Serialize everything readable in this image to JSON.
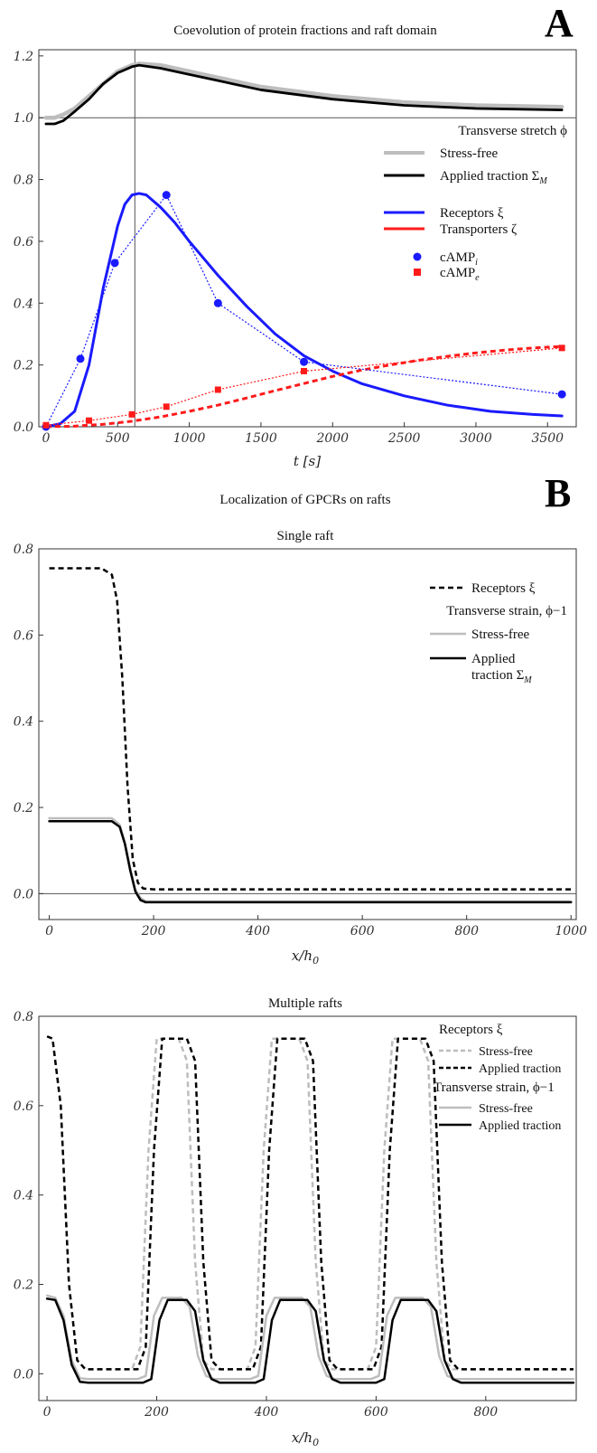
{
  "panelA": {
    "letter": "A",
    "title": "Coevolution of protein fractions and raft domain",
    "xlabel": "t [s]",
    "legend": {
      "header": "Transverse stretch ϕ",
      "stress_free": "Stress-free",
      "applied": "Applied traction Σ",
      "applied_sub": "M",
      "receptors": "Receptors ξ",
      "transporters": "Transporters ζ",
      "camp_i": "cAMP",
      "camp_i_sub": "i",
      "camp_e": "cAMP",
      "camp_e_sub": "e"
    }
  },
  "panelB": {
    "letter": "B",
    "title": "Localization of GPCRs on rafts",
    "single": {
      "title": "Single raft",
      "xlabel": "x/h",
      "xlabel_sub": "0",
      "legend": {
        "receptors": "Receptors ξ",
        "header": "Transverse strain, ϕ−1",
        "stress_free": "Stress-free",
        "applied_l1": "Applied",
        "applied_l2": "traction Σ",
        "applied_sub": "M"
      }
    },
    "multiple": {
      "title": "Multiple rafts",
      "xlabel": "x/h",
      "xlabel_sub": "0",
      "legend": {
        "receptors_header": "Receptors ξ",
        "r_stress_free": "Stress-free",
        "r_applied": "Applied traction",
        "strain_header": "Transverse strain, ϕ−1",
        "s_stress_free": "Stress-free",
        "s_applied": "Applied traction"
      }
    }
  },
  "colors": {
    "black": "#000000",
    "gray": "#bdbdbd",
    "blue": "#1a1aff",
    "red": "#ff1a1a",
    "axis": "#333333"
  },
  "chart_data": [
    {
      "type": "line",
      "id": "A",
      "xlim": [
        -50,
        3700
      ],
      "ylim": [
        0,
        1.22
      ],
      "xticks": [
        0,
        500,
        1000,
        1500,
        2000,
        2500,
        3000,
        3500
      ],
      "yticks": [
        0.0,
        0.2,
        0.4,
        0.6,
        0.8,
        1.0,
        1.2
      ],
      "ytick_labels": [
        "0.0",
        "0.2",
        "0.4",
        "0.6",
        "0.8",
        "1.0",
        "1.2"
      ],
      "reference_lines": {
        "y": 1.0,
        "x": 620
      },
      "series": [
        {
          "name": "Stress-free",
          "style": "gray-thick",
          "x": [
            0,
            60,
            120,
            200,
            300,
            400,
            500,
            600,
            650,
            800,
            1000,
            1200,
            1500,
            2000,
            2500,
            3000,
            3600
          ],
          "y": [
            1.0,
            1.0,
            1.01,
            1.03,
            1.07,
            1.11,
            1.15,
            1.17,
            1.175,
            1.17,
            1.15,
            1.13,
            1.1,
            1.07,
            1.05,
            1.04,
            1.035
          ]
        },
        {
          "name": "Applied traction ΣM",
          "style": "black-thick",
          "x": [
            0,
            60,
            120,
            200,
            300,
            400,
            500,
            600,
            650,
            800,
            1000,
            1200,
            1500,
            2000,
            2500,
            3000,
            3600
          ],
          "y": [
            0.98,
            0.98,
            0.99,
            1.02,
            1.06,
            1.11,
            1.145,
            1.165,
            1.17,
            1.16,
            1.14,
            1.12,
            1.09,
            1.06,
            1.04,
            1.03,
            1.025
          ]
        },
        {
          "name": "Receptors ξ",
          "style": "blue-thick",
          "x": [
            0,
            100,
            200,
            300,
            400,
            500,
            550,
            600,
            650,
            700,
            800,
            900,
            1000,
            1200,
            1400,
            1600,
            1800,
            2000,
            2200,
            2500,
            2800,
            3100,
            3400,
            3600
          ],
          "y": [
            0.0,
            0.01,
            0.05,
            0.2,
            0.45,
            0.65,
            0.72,
            0.75,
            0.755,
            0.75,
            0.71,
            0.66,
            0.6,
            0.49,
            0.39,
            0.3,
            0.23,
            0.18,
            0.14,
            0.1,
            0.07,
            0.05,
            0.04,
            0.035
          ]
        },
        {
          "name": "Transporters ζ",
          "style": "red-dashed",
          "x": [
            0,
            200,
            400,
            600,
            800,
            1000,
            1200,
            1400,
            1600,
            1800,
            2000,
            2200,
            2400,
            2600,
            2800,
            3000,
            3200,
            3400,
            3600
          ],
          "y": [
            0.0,
            0.002,
            0.008,
            0.018,
            0.032,
            0.05,
            0.07,
            0.093,
            0.117,
            0.14,
            0.163,
            0.183,
            0.2,
            0.215,
            0.228,
            0.239,
            0.248,
            0.255,
            0.26
          ]
        },
        {
          "name": "cAMP i",
          "style": "blue-markers",
          "x": [
            0,
            240,
            480,
            840,
            1200,
            1800,
            3600
          ],
          "y": [
            0.0,
            0.22,
            0.53,
            0.75,
            0.4,
            0.21,
            0.105
          ]
        },
        {
          "name": "cAMP e",
          "style": "red-markers",
          "x": [
            0,
            300,
            600,
            840,
            1200,
            1800,
            3600
          ],
          "y": [
            0.005,
            0.02,
            0.04,
            0.065,
            0.12,
            0.18,
            0.255
          ]
        }
      ]
    },
    {
      "type": "line",
      "id": "B1",
      "xlim": [
        -20,
        1010
      ],
      "ylim": [
        -0.06,
        0.8
      ],
      "xticks": [
        0,
        200,
        400,
        600,
        800,
        1000
      ],
      "yticks": [
        0.0,
        0.2,
        0.4,
        0.6,
        0.8
      ],
      "ytick_labels": [
        "0.0",
        "0.2",
        "0.4",
        "0.6",
        "0.8"
      ],
      "reference_lines": {
        "y": 0.0
      },
      "series": [
        {
          "name": "Receptors ξ",
          "style": "black-dashed",
          "x": [
            0,
            100,
            120,
            130,
            140,
            150,
            160,
            170,
            180,
            200,
            1000
          ],
          "y": [
            0.755,
            0.755,
            0.74,
            0.68,
            0.5,
            0.25,
            0.08,
            0.025,
            0.012,
            0.01,
            0.01
          ]
        },
        {
          "name": "Stress-free",
          "style": "gray",
          "x": [
            0,
            120,
            135,
            145,
            155,
            165,
            175,
            185,
            1000
          ],
          "y": [
            0.175,
            0.175,
            0.16,
            0.12,
            0.06,
            0.01,
            -0.01,
            -0.018,
            -0.018
          ]
        },
        {
          "name": "Applied traction ΣM",
          "style": "black",
          "x": [
            0,
            120,
            135,
            145,
            155,
            165,
            175,
            185,
            1000
          ],
          "y": [
            0.168,
            0.168,
            0.155,
            0.115,
            0.055,
            0.005,
            -0.015,
            -0.02,
            -0.02
          ]
        }
      ]
    },
    {
      "type": "line",
      "id": "B2",
      "xlim": [
        -15,
        965
      ],
      "ylim": [
        -0.06,
        0.8
      ],
      "xticks": [
        0,
        200,
        400,
        600,
        800
      ],
      "yticks": [
        0.0,
        0.2,
        0.4,
        0.6,
        0.8
      ],
      "ytick_labels": [
        "0.0",
        "0.2",
        "0.4",
        "0.6",
        "0.8"
      ],
      "series": [
        {
          "name": "Receptors ξ Stress-free",
          "style": "gray-dashed",
          "x": [
            0,
            10,
            25,
            40,
            55,
            70,
            155,
            170,
            185,
            200,
            240,
            255,
            270,
            285,
            300,
            365,
            380,
            395,
            410,
            460,
            475,
            490,
            505,
            520,
            585,
            600,
            615,
            630,
            680,
            695,
            710,
            725,
            740,
            960
          ],
          "y": [
            0.755,
            0.75,
            0.6,
            0.2,
            0.03,
            0.01,
            0.01,
            0.06,
            0.5,
            0.75,
            0.75,
            0.7,
            0.25,
            0.03,
            0.01,
            0.01,
            0.06,
            0.5,
            0.75,
            0.75,
            0.7,
            0.25,
            0.03,
            0.01,
            0.01,
            0.06,
            0.5,
            0.75,
            0.75,
            0.7,
            0.25,
            0.03,
            0.01,
            0.01
          ]
        },
        {
          "name": "Receptors ξ Applied traction",
          "style": "black-dashed",
          "x": [
            0,
            10,
            25,
            40,
            55,
            70,
            165,
            180,
            195,
            210,
            255,
            270,
            285,
            300,
            315,
            375,
            390,
            405,
            420,
            470,
            485,
            500,
            515,
            530,
            595,
            610,
            625,
            640,
            690,
            705,
            720,
            735,
            750,
            960
          ],
          "y": [
            0.755,
            0.75,
            0.6,
            0.2,
            0.03,
            0.01,
            0.01,
            0.06,
            0.5,
            0.75,
            0.75,
            0.7,
            0.25,
            0.03,
            0.01,
            0.01,
            0.06,
            0.5,
            0.75,
            0.75,
            0.7,
            0.25,
            0.03,
            0.01,
            0.01,
            0.06,
            0.5,
            0.75,
            0.75,
            0.7,
            0.25,
            0.03,
            0.01,
            0.01
          ]
        },
        {
          "name": "Transverse strain Stress-free",
          "style": "gray",
          "x": [
            0,
            15,
            30,
            45,
            60,
            75,
            165,
            180,
            195,
            210,
            245,
            260,
            275,
            290,
            305,
            370,
            385,
            400,
            415,
            465,
            480,
            495,
            510,
            525,
            590,
            605,
            620,
            635,
            685,
            700,
            715,
            730,
            745,
            960
          ],
          "y": [
            0.175,
            0.17,
            0.13,
            0.03,
            -0.01,
            -0.012,
            -0.012,
            -0.005,
            0.13,
            0.17,
            0.17,
            0.15,
            0.04,
            -0.005,
            -0.012,
            -0.012,
            -0.005,
            0.13,
            0.17,
            0.17,
            0.15,
            0.04,
            -0.005,
            -0.012,
            -0.012,
            -0.005,
            0.13,
            0.17,
            0.17,
            0.15,
            0.04,
            -0.005,
            -0.012,
            -0.012
          ]
        },
        {
          "name": "Transverse strain Applied traction",
          "style": "black",
          "x": [
            0,
            15,
            30,
            45,
            60,
            75,
            175,
            190,
            205,
            220,
            255,
            270,
            285,
            300,
            315,
            380,
            395,
            410,
            425,
            475,
            490,
            505,
            520,
            535,
            600,
            615,
            630,
            645,
            695,
            710,
            725,
            740,
            755,
            960
          ],
          "y": [
            0.168,
            0.165,
            0.12,
            0.02,
            -0.018,
            -0.02,
            -0.02,
            -0.012,
            0.12,
            0.165,
            0.165,
            0.14,
            0.03,
            -0.012,
            -0.02,
            -0.02,
            -0.012,
            0.12,
            0.165,
            0.165,
            0.14,
            0.03,
            -0.012,
            -0.02,
            -0.02,
            -0.012,
            0.12,
            0.165,
            0.165,
            0.14,
            0.03,
            -0.012,
            -0.02,
            -0.02
          ]
        }
      ]
    }
  ]
}
